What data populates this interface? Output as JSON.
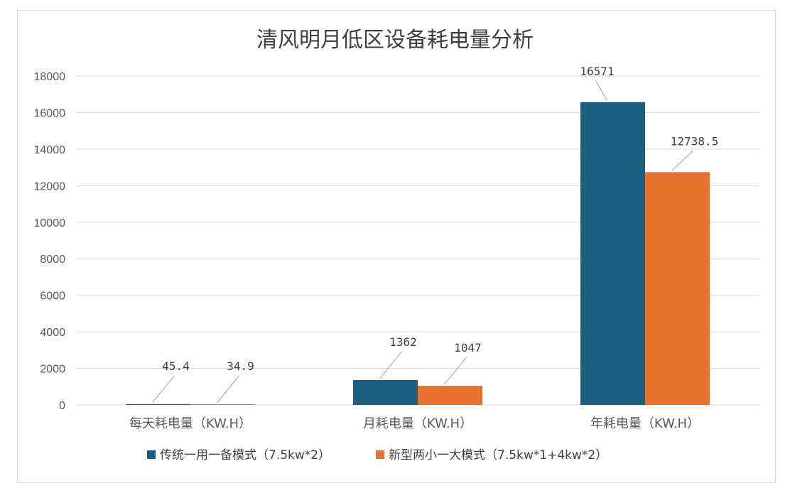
{
  "chart_data": {
    "type": "bar",
    "title": "清风明月低区设备耗电量分析",
    "categories": [
      "每天耗电量（KW.H）",
      "月耗电量（KW.H）",
      "年耗电量（KW.H）"
    ],
    "series": [
      {
        "name": "传统一用一备模式（7.5kw*2）",
        "values": [
          45.4,
          1362,
          16571
        ],
        "labels": [
          "45.4",
          "1362",
          "16571"
        ],
        "color": "#1a5e80"
      },
      {
        "name": "新型两小一大模式（7.5kw*1+4kw*2）",
        "values": [
          34.9,
          1047,
          12738.5
        ],
        "labels": [
          "34.9",
          "1047",
          "12738.5"
        ],
        "color": "#e87230"
      }
    ],
    "ylim": [
      0,
      18000
    ],
    "yticks": [
      "0",
      "2000",
      "4000",
      "6000",
      "8000",
      "10000",
      "12000",
      "14000",
      "16000",
      "18000"
    ],
    "grid": true,
    "legend_position": "bottom",
    "xlabel": "",
    "ylabel": ""
  }
}
